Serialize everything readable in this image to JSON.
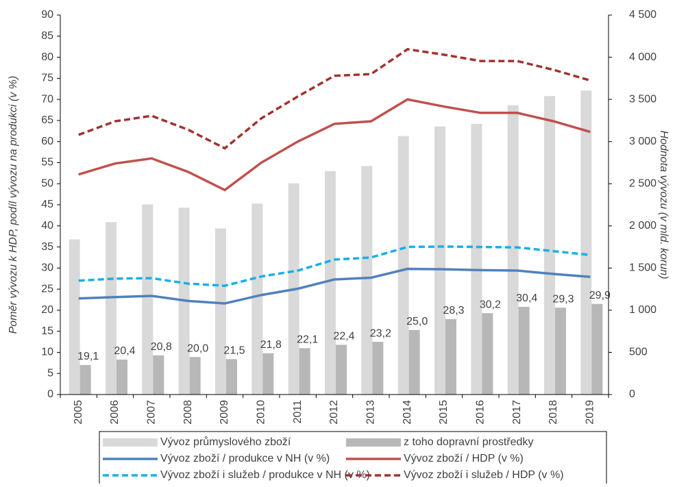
{
  "chart_data": {
    "type": "combo",
    "y_label": "Poměr vývozu k HDP, podíl vývozu na produkci (v %)",
    "y2_label": "Hodnota vývozu (v mld. korun)",
    "categories": [
      "2005",
      "2006",
      "2007",
      "2008",
      "2009",
      "2010",
      "2011",
      "2012",
      "2013",
      "2014",
      "2015",
      "2016",
      "2017",
      "2018",
      "2019"
    ],
    "ylim": [
      0,
      90
    ],
    "yticks": [
      0,
      5,
      10,
      15,
      20,
      25,
      30,
      35,
      40,
      45,
      50,
      55,
      60,
      65,
      70,
      75,
      80,
      85,
      90
    ],
    "y2lim": [
      0,
      4500
    ],
    "y2ticks": [
      0,
      500,
      {
        "value": 1000,
        "label": "1 000"
      },
      {
        "value": 1500,
        "label": "1 500"
      },
      {
        "value": 2000,
        "label": "2 000"
      },
      {
        "value": 2500,
        "label": "2 500"
      },
      {
        "value": 3000,
        "label": "3 000"
      },
      {
        "value": 3500,
        "label": "3 500"
      },
      {
        "value": 4000,
        "label": "4 000"
      },
      {
        "value": 4500,
        "label": "4 500"
      }
    ],
    "series": [
      {
        "name": "Vývoz průmyslového zboží",
        "kind": "bar",
        "axis": "y2",
        "color": "#d9d9d9",
        "values": [
          1840,
          2045,
          2255,
          2215,
          1970,
          2265,
          2505,
          2650,
          2710,
          3065,
          3180,
          3210,
          3430,
          3540,
          3605
        ]
      },
      {
        "name": "z toho dopravní prostředky",
        "kind": "bar",
        "axis": "y2",
        "color": "#b7b7b7",
        "values": [
          350,
          415,
          465,
          445,
          420,
          490,
          550,
          590,
          625,
          765,
          895,
          965,
          1040,
          1030,
          1075
        ],
        "share_labels": [
          "19,1",
          "20,4",
          "20,8",
          "20,0",
          "21,5",
          "21,8",
          "22,1",
          "22,4",
          "23,2",
          "25,0",
          "28,3",
          "30,2",
          "30,4",
          "29,3",
          "29,9"
        ]
      },
      {
        "name": "Vývoz zboží / produkce v NH (v %)",
        "kind": "line",
        "color": "#4f81bd",
        "dashed": false,
        "values": [
          22.8,
          23.1,
          23.4,
          22.2,
          21.6,
          23.6,
          25.1,
          27.3,
          27.7,
          29.8,
          29.7,
          29.5,
          29.4,
          28.6,
          27.9
        ]
      },
      {
        "name": "Vývoz zboží / HDP (v %)",
        "kind": "line",
        "color": "#c0504d",
        "dashed": false,
        "values": [
          52.2,
          54.8,
          56.0,
          52.8,
          48.5,
          55.0,
          60.0,
          64.2,
          64.8,
          70.0,
          68.3,
          66.8,
          66.8,
          64.8,
          62.3
        ]
      },
      {
        "name": "Vývoz zboží i služeb / produkce v NH (v %)",
        "kind": "line",
        "color": "#14b0ea",
        "dashed": true,
        "values": [
          27.0,
          27.5,
          27.6,
          26.3,
          25.8,
          28.0,
          29.4,
          32.0,
          32.5,
          35.0,
          35.1,
          35.0,
          34.9,
          34.0,
          33.1
        ]
      },
      {
        "name": "Vývoz zboží i služeb / HDP (v %)",
        "kind": "line",
        "color": "#a2322e",
        "dashed": true,
        "values": [
          61.6,
          64.8,
          66.1,
          62.8,
          58.4,
          65.5,
          70.7,
          75.6,
          76.0,
          81.9,
          80.6,
          79.1,
          79.1,
          77.0,
          74.5
        ]
      }
    ]
  }
}
